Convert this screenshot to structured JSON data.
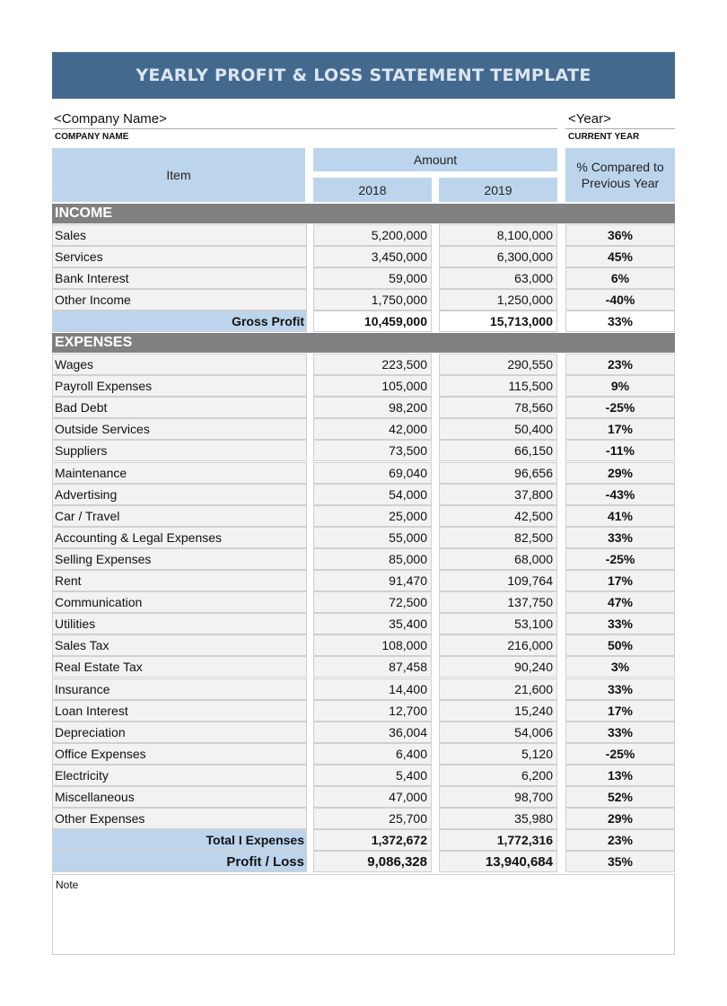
{
  "title": "YEARLY PROFIT & LOSS STATEMENT TEMPLATE",
  "company_name": "<Company Name>",
  "company_label": "COMPANY NAME",
  "year": "<Year>",
  "year_label": "CURRENT YEAR",
  "headers": {
    "item": "Item",
    "amount": "Amount",
    "y1": "2018",
    "y2": "2019",
    "pct": "% Compared to Previous Year"
  },
  "income": {
    "title": "INCOME",
    "rows": [
      [
        "Sales",
        "5,200,000",
        "8,100,000",
        "36%"
      ],
      [
        "Services",
        "3,450,000",
        "6,300,000",
        "45%"
      ],
      [
        "Bank Interest",
        "59,000",
        "63,000",
        "6%"
      ],
      [
        "Other Income",
        "1,750,000",
        "1,250,000",
        "-40%"
      ]
    ],
    "total": [
      "Gross Profit",
      "10,459,000",
      "15,713,000",
      "33%"
    ]
  },
  "expenses": {
    "title": "EXPENSES",
    "rows": [
      [
        "Wages",
        "223,500",
        "290,550",
        "23%"
      ],
      [
        "Payroll Expenses",
        "105,000",
        "115,500",
        "9%"
      ],
      [
        "Bad Debt",
        "98,200",
        "78,560",
        "-25%"
      ],
      [
        "Outside Services",
        "42,000",
        "50,400",
        "17%"
      ],
      [
        "Suppliers",
        "73,500",
        "66,150",
        "-11%"
      ],
      [
        "Maintenance",
        "69,040",
        "96,656",
        "29%"
      ],
      [
        "Advertising",
        "54,000",
        "37,800",
        "-43%"
      ],
      [
        "Car / Travel",
        "25,000",
        "42,500",
        "41%"
      ],
      [
        "Accounting & Legal Expenses",
        "55,000",
        "82,500",
        "33%"
      ],
      [
        "Selling Expenses",
        "85,000",
        "68,000",
        "-25%"
      ],
      [
        "Rent",
        "91,470",
        "109,764",
        "17%"
      ],
      [
        "Communication",
        "72,500",
        "137,750",
        "47%"
      ],
      [
        "Utilities",
        "35,400",
        "53,100",
        "33%"
      ],
      [
        "Sales Tax",
        "108,000",
        "216,000",
        "50%"
      ],
      [
        "Real Estate Tax",
        "87,458",
        "90,240",
        "3%"
      ],
      [
        "Insurance",
        "14,400",
        "21,600",
        "33%"
      ],
      [
        "Loan Interest",
        "12,700",
        "15,240",
        "17%"
      ],
      [
        "Depreciation",
        "36,004",
        "54,006",
        "33%"
      ],
      [
        "Office Expenses",
        "6,400",
        "5,120",
        "-25%"
      ],
      [
        "Electricity",
        "5,400",
        "6,200",
        "13%"
      ],
      [
        "Miscellaneous",
        "47,000",
        "98,700",
        "52%"
      ],
      [
        "Other Expenses",
        "25,700",
        "35,980",
        "29%"
      ]
    ],
    "total": [
      "Total I Expenses",
      "1,372,672",
      "1,772,316",
      "23%"
    ]
  },
  "profit": [
    "Profit / Loss",
    "9,086,328",
    "13,940,684",
    "35%"
  ],
  "note": "Note"
}
